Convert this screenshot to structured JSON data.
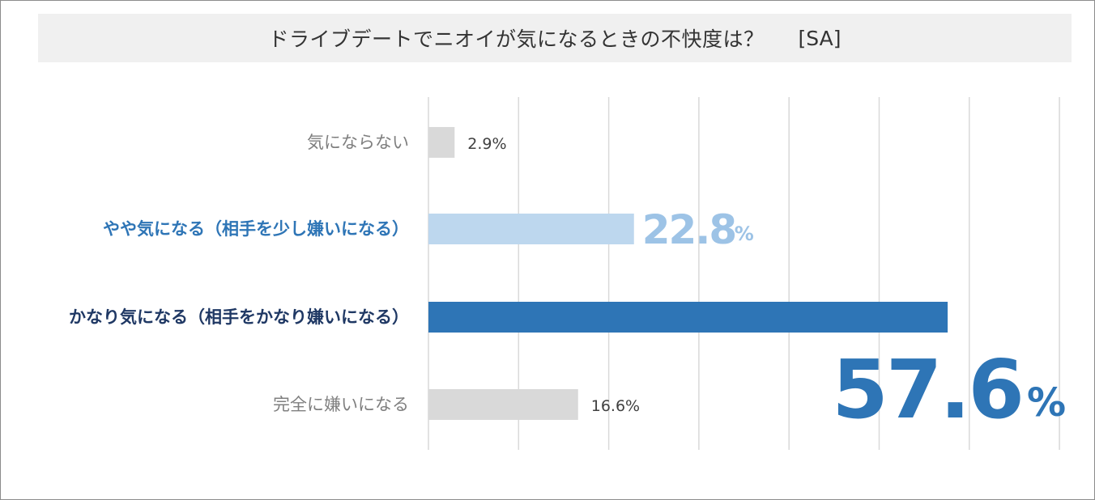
{
  "chart_data": {
    "type": "bar",
    "orientation": "horizontal",
    "title": "ドライブデートでニオイが気になるときの不快度は？",
    "title_tag": "[SA]",
    "categories": [
      "気にならない",
      "やや気になる（相手を少し嫌いになる）",
      "かなり気になる（相手をかなり嫌いになる）",
      "完全に嫌いになる"
    ],
    "values": [
      2.9,
      22.8,
      57.6,
      16.6
    ],
    "value_labels": [
      "2.9%",
      "22.8",
      "57.6",
      "16.6%"
    ],
    "unit": "%",
    "xlim": [
      0,
      70
    ],
    "grid": true,
    "colors": {
      "neutral_bar": "#d9d9d9",
      "light_bar": "#bdd7ee",
      "strong_bar": "#2e75b6",
      "light_label": "#9dc3e6",
      "strong_label": "#2e75b6",
      "light_category": "#2e75b6",
      "strong_category": "#1f3864",
      "neutral_category": "#7f7f7f"
    }
  }
}
